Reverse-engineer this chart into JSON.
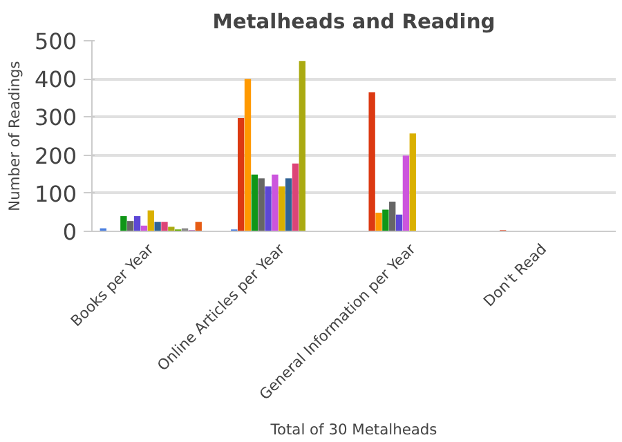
{
  "chart_data": {
    "type": "bar",
    "title": "Metalheads and Reading",
    "xlabel": "Total of 30 Metalheads",
    "ylabel": "Number of Readings",
    "categories": [
      "Books per Year",
      "Online Articles per Year",
      "General Information per Year",
      "Don't Read"
    ],
    "ylim": [
      0,
      500
    ],
    "yticks": [
      0,
      100,
      200,
      300,
      400,
      500
    ],
    "grid": "y",
    "legend": false,
    "series": [
      {
        "color": "#4b7fe0",
        "values": [
          8,
          5,
          null,
          null
        ]
      },
      {
        "color": "#dc3912",
        "values": [
          null,
          297,
          365,
          3
        ]
      },
      {
        "color": "#ff9900",
        "values": [
          null,
          400,
          49,
          null
        ]
      },
      {
        "color": "#109618",
        "values": [
          40,
          149,
          57,
          null
        ]
      },
      {
        "color": "#666666",
        "values": [
          27,
          139,
          78,
          null
        ]
      },
      {
        "color": "#5c47d6",
        "values": [
          40,
          118,
          44,
          null
        ]
      },
      {
        "color": "#cc55dd",
        "values": [
          15,
          149,
          199,
          null
        ]
      },
      {
        "color": "#dab000",
        "values": [
          55,
          118,
          257,
          null
        ]
      },
      {
        "color": "#316395",
        "values": [
          25,
          139,
          null,
          null
        ]
      },
      {
        "color": "#dd4477",
        "values": [
          25,
          178,
          null,
          null
        ]
      },
      {
        "color": "#aaaa11",
        "values": [
          12,
          447,
          null,
          null
        ]
      },
      {
        "color": "#66aa00",
        "values": [
          5,
          null,
          null,
          null
        ]
      },
      {
        "color": "#888888",
        "values": [
          8,
          null,
          null,
          null
        ]
      },
      {
        "color": "#994499",
        "values": [
          3,
          null,
          null,
          null
        ]
      },
      {
        "color": "#e65c14",
        "values": [
          25,
          null,
          null,
          null
        ]
      }
    ]
  }
}
